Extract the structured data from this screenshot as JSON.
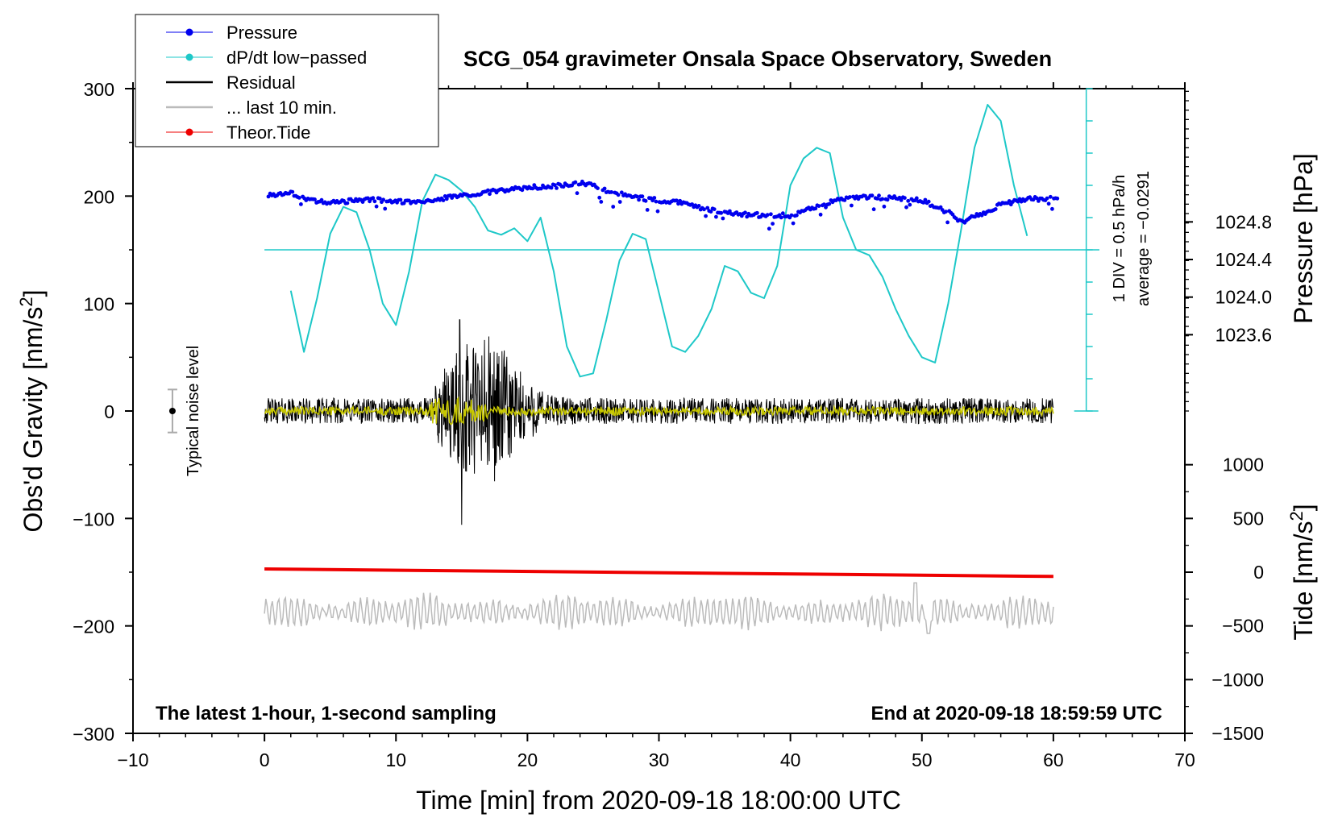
{
  "chart_data": {
    "type": "line",
    "title": "SCG_054 gravimeter Onsala Space Observatory, Sweden",
    "xlabel": "Time [min] from 2020-09-18 18:00:00 UTC",
    "xlim": [
      -10,
      70
    ],
    "x_ticks": [
      -10,
      0,
      10,
      20,
      30,
      40,
      50,
      60,
      70
    ],
    "x_tick_labels": [
      "−10",
      "0",
      "10",
      "20",
      "30",
      "40",
      "50",
      "60",
      "70"
    ],
    "left_axis": {
      "label": "Obs'd Gravity [nm/s",
      "label_sup": "2",
      "label_end": "]",
      "ylim": [
        -300,
        300
      ],
      "ticks": [
        300,
        200,
        100,
        0,
        -100,
        -200,
        -300
      ],
      "tick_labels": [
        "300",
        "200",
        "100",
        "0",
        "−100",
        "−200",
        "−300"
      ]
    },
    "pressure_axis": {
      "label": "Pressure [hPa]",
      "ticks": [
        1024.8,
        1024.4,
        1024.0,
        1023.6
      ],
      "tick_labels": [
        "1024.8",
        "1024.4",
        "1024.0",
        "1023.6"
      ],
      "gravity_equiv": [
        176,
        141,
        106,
        71
      ]
    },
    "tide_axis": {
      "label": "Tide [nm/s",
      "label_sup": "2",
      "label_end": "]",
      "ticks": [
        1000,
        500,
        0,
        -500,
        -1000,
        -1500
      ],
      "tick_labels": [
        "1000",
        "500",
        "0",
        "−500",
        "−1000",
        "−1500"
      ],
      "gravity_equiv": [
        -50,
        -100,
        -150,
        -200,
        -250,
        -300
      ]
    },
    "dpdt_scale": {
      "div_label": "1 DIV = 0.5 hPa/h",
      "average_label": "average = −0.0291",
      "baseline_gravity": 150,
      "axis_range_gravity": [
        0,
        300
      ],
      "div_gravity": 30
    },
    "legend": [
      {
        "label": "Pressure",
        "color": "#0000ee",
        "marker": "dot"
      },
      {
        "label": "dP/dt low−passed",
        "color": "#1ec8c8",
        "marker": "dot"
      },
      {
        "label": "Residual",
        "color": "#000000",
        "marker": "line"
      },
      {
        "label": "... last 10 min.",
        "color": "#bbbbbb",
        "marker": "line"
      },
      {
        "label": "Theor.Tide",
        "color": "#ee0000",
        "marker": "dot"
      }
    ],
    "annotations": {
      "left_bottom": "The latest 1-hour, 1-second sampling",
      "right_bottom": "End at 2020-09-18 18:59:59 UTC",
      "noise": "Typical noise level"
    },
    "noise_bar": {
      "x": -7,
      "center": 0,
      "half_range": 20
    },
    "series": [
      {
        "name": "Pressure",
        "color": "#0000ee",
        "axis": "gravity",
        "x": [
          0,
          1,
          2,
          3,
          4,
          5,
          6,
          8,
          10,
          12,
          14,
          16,
          18,
          20,
          22,
          24,
          25,
          26,
          28,
          30,
          32,
          34,
          36,
          38,
          40,
          42,
          44,
          46,
          48,
          50,
          52,
          53,
          55,
          56,
          58,
          60
        ],
        "values": [
          200,
          202,
          203,
          198,
          195,
          194,
          195,
          197,
          195,
          194,
          199,
          202,
          205,
          208,
          209,
          212,
          211,
          205,
          199,
          196,
          193,
          187,
          183,
          182,
          182,
          190,
          198,
          199,
          198,
          196,
          185,
          176,
          186,
          192,
          197,
          198
        ]
      },
      {
        "name": "dP/dt low−passed",
        "color": "#1ec8c8",
        "axis": "gravity",
        "x": [
          2,
          3,
          4,
          5,
          6,
          7,
          8,
          9,
          10,
          11,
          12,
          13,
          14,
          15,
          16,
          17,
          18,
          19,
          20,
          21,
          22,
          23,
          24,
          25,
          26,
          27,
          28,
          29,
          30,
          31,
          32,
          33,
          34,
          35,
          36,
          37,
          38,
          39,
          40,
          41,
          42,
          43,
          44,
          45,
          46,
          47,
          48,
          49,
          50,
          51,
          52,
          53,
          54,
          55,
          56,
          57,
          58
        ],
        "values": [
          112,
          55,
          105,
          165,
          190,
          185,
          150,
          100,
          80,
          130,
          195,
          220,
          215,
          205,
          190,
          168,
          164,
          170,
          158,
          180,
          130,
          60,
          32,
          35,
          85,
          140,
          165,
          160,
          110,
          60,
          55,
          70,
          95,
          135,
          130,
          110,
          105,
          135,
          210,
          235,
          245,
          240,
          180,
          150,
          145,
          125,
          95,
          70,
          50,
          45,
          100,
          170,
          245,
          285,
          270,
          210,
          163
        ]
      },
      {
        "name": "Theor.Tide",
        "color": "#ee0000",
        "axis": "tide",
        "x": [
          0,
          60
        ],
        "values": [
          30,
          -40
        ]
      }
    ],
    "residual": {
      "name": "Residual",
      "color": "#000000",
      "x_range": [
        0,
        60
      ],
      "baseline": 0,
      "typical_amplitude": 12,
      "burst": {
        "x_range": [
          13,
          24
        ],
        "peak_x": 15,
        "min": -106,
        "max": 85
      }
    },
    "residual_smoothed": {
      "color": "#c8c800",
      "x_range": [
        0,
        60
      ],
      "typical_amplitude": 4
    },
    "last_10_min": {
      "name": "... last 10 min.",
      "color": "#bbbbbb",
      "x_range": [
        0,
        60
      ],
      "baseline": -187,
      "typical_amplitude": 10,
      "max": -160,
      "min": -207
    }
  }
}
